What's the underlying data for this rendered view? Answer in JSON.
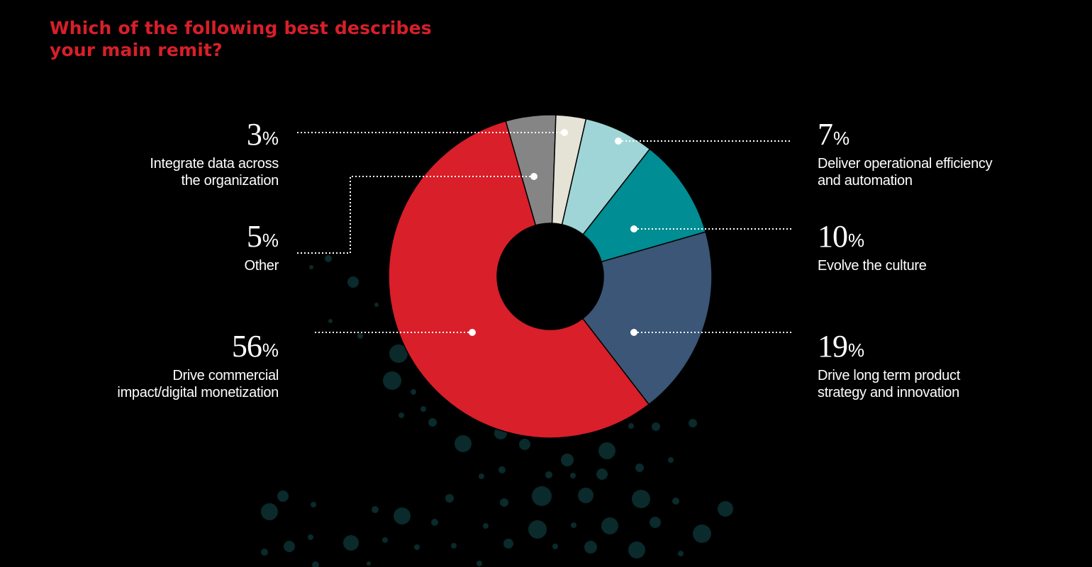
{
  "title": {
    "line1": "Which of the following best describes",
    "line2": "your main remit?"
  },
  "colors": {
    "background": "#000000",
    "title": "#d81f2a",
    "dots": "#0a2a2b"
  },
  "chart_data": {
    "type": "pie",
    "donut": true,
    "title": "Which of the following best describes your main remit?",
    "unit": "%",
    "slices": [
      {
        "key": "other",
        "label_lines": [
          "Other"
        ],
        "value": 5,
        "color": "#858585"
      },
      {
        "key": "integrate",
        "label_lines": [
          "Integrate data across",
          "the organization"
        ],
        "value": 3,
        "color": "#e5e2d6"
      },
      {
        "key": "operational",
        "label_lines": [
          "Deliver operational efficiency",
          "and automation"
        ],
        "value": 7,
        "color": "#a0d5d8"
      },
      {
        "key": "culture",
        "label_lines": [
          "Evolve the culture"
        ],
        "value": 10,
        "color": "#008d93"
      },
      {
        "key": "product",
        "label_lines": [
          "Drive long term product",
          "strategy and innovation"
        ],
        "value": 19,
        "color": "#3b5676"
      },
      {
        "key": "commercial",
        "label_lines": [
          "Drive commercial",
          "impact/digital monetization"
        ],
        "value": 56,
        "color": "#d81f2a"
      }
    ]
  }
}
